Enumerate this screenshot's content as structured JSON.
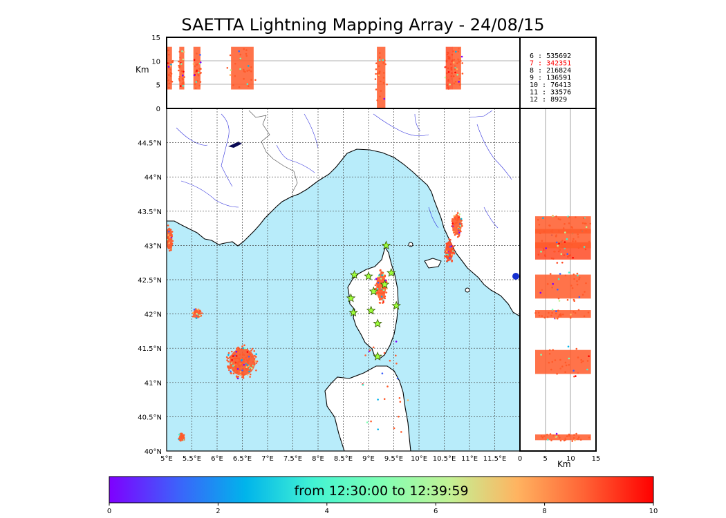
{
  "title": "SAETTA Lightning Mapping Array - 24/08/15",
  "map": {
    "lon_ticks": [
      "5°E",
      "5.5°E",
      "6°E",
      "6.5°E",
      "7°E",
      "7.5°E",
      "8°E",
      "8.5°E",
      "9°E",
      "9.5°E",
      "10°E",
      "10.5°E",
      "11°E",
      "11.5°E"
    ],
    "lat_ticks": [
      "44.5°N",
      "44°N",
      "43.5°N",
      "43°N",
      "42.5°N",
      "42°N",
      "41.5°N",
      "41°N",
      "40.5°N",
      "40°N"
    ],
    "lon_range": [
      5,
      12
    ],
    "lat_range": [
      40,
      45
    ],
    "sea_color": "#b8ecfa",
    "land_color": "#ffffff"
  },
  "altitude_panel": {
    "ylabel": "Km",
    "yticks": [
      "15",
      "10",
      "5",
      "0"
    ],
    "range": [
      0,
      15
    ]
  },
  "side_panel": {
    "xlabel": "Km",
    "xticks": [
      "0",
      "5",
      "10",
      "15"
    ],
    "range": [
      0,
      15
    ]
  },
  "counts": [
    {
      "label": "6 :   535692",
      "color": "#000000"
    },
    {
      "label": "7 :   342351",
      "color": "#ff0000"
    },
    {
      "label": "8 :   216824",
      "color": "#000000"
    },
    {
      "label": "9 :   136591",
      "color": "#000000"
    },
    {
      "label": "10 :    76413",
      "color": "#000000"
    },
    {
      "label": "11 :    33576",
      "color": "#000000"
    },
    {
      "label": "12 :     8929",
      "color": "#000000"
    }
  ],
  "stations": [
    {
      "lon": 9.35,
      "lat": 43.0
    },
    {
      "lon": 8.72,
      "lat": 42.57
    },
    {
      "lon": 9.0,
      "lat": 42.55
    },
    {
      "lon": 9.45,
      "lat": 42.6
    },
    {
      "lon": 9.32,
      "lat": 42.43
    },
    {
      "lon": 9.1,
      "lat": 42.33
    },
    {
      "lon": 8.65,
      "lat": 42.23
    },
    {
      "lon": 9.55,
      "lat": 42.12
    },
    {
      "lon": 8.7,
      "lat": 42.02
    },
    {
      "lon": 9.05,
      "lat": 42.05
    },
    {
      "lon": 9.18,
      "lat": 41.86
    },
    {
      "lon": 9.18,
      "lat": 41.38
    }
  ],
  "colorbar": {
    "label": "from 12:30:00 to 12:39:59",
    "ticks": [
      "0",
      "2",
      "4",
      "6",
      "8",
      "10"
    ],
    "range": [
      0,
      10
    ],
    "colors": [
      "#7f00ff",
      "#3d61fb",
      "#00b4eb",
      "#42f3d3",
      "#80ffb4",
      "#c2f295",
      "#ffb360",
      "#ff6134",
      "#ff0000"
    ]
  },
  "clusters": [
    {
      "lon": 6.5,
      "lat": 41.3,
      "rx": 0.32,
      "ry": 0.25,
      "color": "#ff5a2a"
    },
    {
      "lon": 5.6,
      "lat": 42.0,
      "rx": 0.1,
      "ry": 0.08,
      "color": "#ff5a2a"
    },
    {
      "lon": 9.25,
      "lat": 42.4,
      "rx": 0.12,
      "ry": 0.25,
      "color": "#ff5a2a"
    },
    {
      "lon": 10.75,
      "lat": 43.3,
      "rx": 0.12,
      "ry": 0.18,
      "color": "#ff5a2a"
    },
    {
      "lon": 10.6,
      "lat": 42.92,
      "rx": 0.1,
      "ry": 0.18,
      "color": "#ff4a24"
    },
    {
      "lon": 5.05,
      "lat": 43.1,
      "rx": 0.08,
      "ry": 0.2,
      "color": "#ff5a2a"
    },
    {
      "lon": 5.3,
      "lat": 40.2,
      "rx": 0.07,
      "ry": 0.06,
      "color": "#ff5a2a"
    }
  ]
}
